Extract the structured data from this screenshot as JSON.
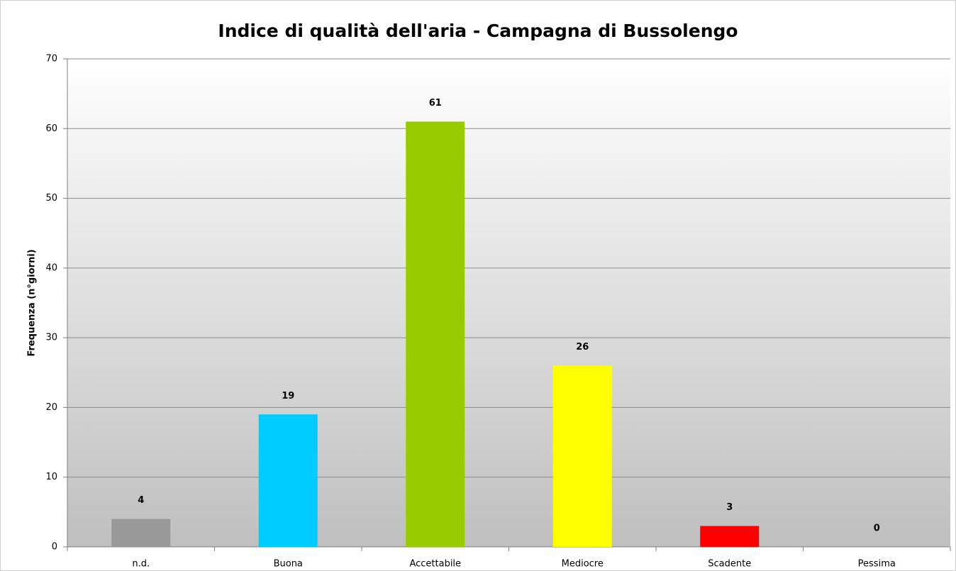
{
  "chart_data": {
    "type": "bar",
    "title": "Indice di qualità dell'aria - Campagna di Bussolengo",
    "y_label": "Frequenza (n°giorni)",
    "categories": [
      "n.d.",
      "Buona",
      "Accettabile",
      "Mediocre",
      "Scadente",
      "Pessima"
    ],
    "values": [
      4,
      19,
      61,
      26,
      3,
      0
    ],
    "colors": [
      "#999999",
      "#00ccff",
      "#99cc00",
      "#ffff00",
      "#ff0000",
      "#7030a0"
    ],
    "ylim": [
      0,
      70
    ],
    "yticks": [
      0,
      10,
      20,
      30,
      40,
      50,
      60,
      70
    ],
    "grid": true
  }
}
